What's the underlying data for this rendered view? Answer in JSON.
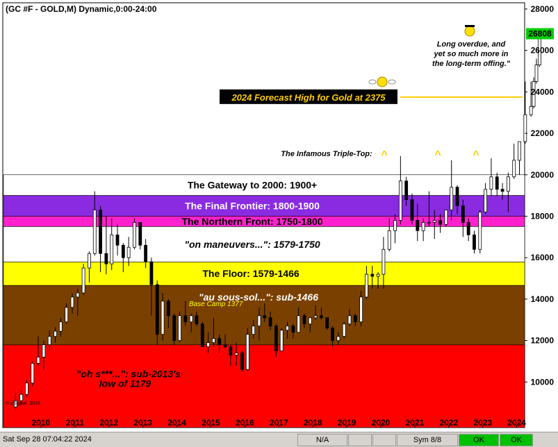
{
  "header": {
    "title": "(GC #F - GOLD,M) Dynamic,0:00-24:00"
  },
  "chart_data": {
    "type": "candlestick",
    "title": "(GC #F - GOLD,M) Dynamic,0:00-24:00",
    "x_axis": {
      "ticks": [
        "2010",
        "2011",
        "2012",
        "2013",
        "2014",
        "2015",
        "2016",
        "2017",
        "2018",
        "2019",
        "2020",
        "2021",
        "2022",
        "2023",
        "2024"
      ]
    },
    "y_axis": {
      "position": "right",
      "range": [
        7800,
        28300
      ],
      "ticks": [
        10000,
        12000,
        14000,
        16000,
        18000,
        20000,
        22000,
        24000,
        26000,
        28000
      ],
      "tick_labels": [
        "10000",
        "12000",
        "14000",
        "16000",
        "18000",
        "20000",
        "22000",
        "24000",
        "26000",
        "28000"
      ]
    },
    "last_price": "26808",
    "last_price_color": "#00cc00",
    "bands": [
      {
        "label": "The Gateway to 2000:  1900+",
        "low": 19000,
        "high": 20000,
        "color": "#ffffff",
        "text_color": "#000000",
        "italic": false
      },
      {
        "label": "The Final Frontier:  1800-1900",
        "low": 18000,
        "high": 19000,
        "color": "#8a2be2",
        "text_color": "#ffffff",
        "italic": false
      },
      {
        "label": "The Northern Front:  1750-1800",
        "low": 17500,
        "high": 18000,
        "color": "#ff22cc",
        "text_color": "#000000",
        "italic": false
      },
      {
        "label": "\"on maneuvers...\":  1579-1750",
        "low": 15790,
        "high": 17500,
        "color": "#ffffff",
        "text_color": "#000000",
        "italic": true
      },
      {
        "label": "The Floor:  1579-1466",
        "low": 14660,
        "high": 15790,
        "color": "#ffff00",
        "text_color": "#000000",
        "italic": false
      },
      {
        "label": "\"au sous-sol...\":  sub-1466",
        "low": 11790,
        "high": 14660,
        "color": "#7a4000",
        "text_color": "#ffffff",
        "italic": true
      },
      {
        "label": "\"oh s***...\":  sub-2013's low of 1179",
        "low": 7800,
        "high": 11790,
        "color": "#ff0000",
        "text_color": "#000000",
        "italic": true
      }
    ],
    "band_notes": {
      "base_camp": "Base Camp 1377",
      "oh_line1": "\"oh s***...\":  sub-2013's",
      "oh_line2": "low of 1179"
    },
    "annotations": {
      "triple_top": "The Infamous Triple-Top:",
      "caret": "^",
      "forecast": "2024 Forecast High for Gold at 2375",
      "forecast_value": 23750,
      "overdue_line1": "Long overdue, and",
      "overdue_line2": "yet so much more in",
      "overdue_line3": "the long-term offing.\"",
      "copyright": "© eSignal, 2016"
    },
    "series_description": "Monthly candles ~2009.2 to 2024.8",
    "candles": [
      {
        "x": 2009.25,
        "o": 8800,
        "h": 9450,
        "l": 8650,
        "c": 9100
      },
      {
        "x": 2009.42,
        "o": 9100,
        "h": 9600,
        "l": 8900,
        "c": 9400
      },
      {
        "x": 2009.58,
        "o": 9400,
        "h": 10100,
        "l": 9300,
        "c": 9950
      },
      {
        "x": 2009.75,
        "o": 9950,
        "h": 11000,
        "l": 9800,
        "c": 10900
      },
      {
        "x": 2009.92,
        "o": 10900,
        "h": 12200,
        "l": 10800,
        "c": 11200
      },
      {
        "x": 2010.08,
        "o": 11200,
        "h": 12000,
        "l": 10600,
        "c": 11800
      },
      {
        "x": 2010.25,
        "o": 11800,
        "h": 12500,
        "l": 11500,
        "c": 12200
      },
      {
        "x": 2010.42,
        "o": 12200,
        "h": 12650,
        "l": 11900,
        "c": 12450
      },
      {
        "x": 2010.58,
        "o": 12450,
        "h": 13100,
        "l": 12200,
        "c": 12900
      },
      {
        "x": 2010.75,
        "o": 12900,
        "h": 13800,
        "l": 12800,
        "c": 13600
      },
      {
        "x": 2010.92,
        "o": 13600,
        "h": 14300,
        "l": 13300,
        "c": 14100
      },
      {
        "x": 2011.08,
        "o": 14100,
        "h": 14500,
        "l": 13200,
        "c": 14300
      },
      {
        "x": 2011.25,
        "o": 14300,
        "h": 15700,
        "l": 14200,
        "c": 15500
      },
      {
        "x": 2011.42,
        "o": 15500,
        "h": 16300,
        "l": 14800,
        "c": 16200
      },
      {
        "x": 2011.58,
        "o": 16200,
        "h": 19200,
        "l": 16100,
        "c": 18300
      },
      {
        "x": 2011.75,
        "o": 18300,
        "h": 18500,
        "l": 15300,
        "c": 16200
      },
      {
        "x": 2011.92,
        "o": 16200,
        "h": 18000,
        "l": 15200,
        "c": 15700
      },
      {
        "x": 2012.08,
        "o": 15700,
        "h": 17900,
        "l": 15400,
        "c": 17100
      },
      {
        "x": 2012.25,
        "o": 17100,
        "h": 17600,
        "l": 16100,
        "c": 16600
      },
      {
        "x": 2012.42,
        "o": 16600,
        "h": 16700,
        "l": 15300,
        "c": 16000
      },
      {
        "x": 2012.58,
        "o": 16000,
        "h": 17000,
        "l": 15600,
        "c": 16500
      },
      {
        "x": 2012.75,
        "o": 16500,
        "h": 17900,
        "l": 16400,
        "c": 17700
      },
      {
        "x": 2012.92,
        "o": 17700,
        "h": 17600,
        "l": 16400,
        "c": 16600
      },
      {
        "x": 2013.08,
        "o": 16600,
        "h": 16900,
        "l": 15500,
        "c": 15800
      },
      {
        "x": 2013.25,
        "o": 15800,
        "h": 16000,
        "l": 13200,
        "c": 14700
      },
      {
        "x": 2013.42,
        "o": 14700,
        "h": 14900,
        "l": 11800,
        "c": 12300
      },
      {
        "x": 2013.58,
        "o": 12300,
        "h": 14300,
        "l": 12000,
        "c": 13900
      },
      {
        "x": 2013.75,
        "o": 13900,
        "h": 14000,
        "l": 12600,
        "c": 13200
      },
      {
        "x": 2013.92,
        "o": 13200,
        "h": 13300,
        "l": 11800,
        "c": 12000
      },
      {
        "x": 2014.08,
        "o": 12000,
        "h": 13400,
        "l": 11900,
        "c": 13200
      },
      {
        "x": 2014.25,
        "o": 13200,
        "h": 13900,
        "l": 12700,
        "c": 12900
      },
      {
        "x": 2014.42,
        "o": 12900,
        "h": 13300,
        "l": 12400,
        "c": 13200
      },
      {
        "x": 2014.58,
        "o": 13200,
        "h": 13400,
        "l": 12700,
        "c": 12800
      },
      {
        "x": 2014.75,
        "o": 12800,
        "h": 12900,
        "l": 11800,
        "c": 11700
      },
      {
        "x": 2014.92,
        "o": 11700,
        "h": 12400,
        "l": 11400,
        "c": 11900
      },
      {
        "x": 2015.08,
        "o": 11900,
        "h": 13100,
        "l": 11700,
        "c": 12100
      },
      {
        "x": 2015.25,
        "o": 12100,
        "h": 12300,
        "l": 11400,
        "c": 11800
      },
      {
        "x": 2015.42,
        "o": 11800,
        "h": 12300,
        "l": 11600,
        "c": 11700
      },
      {
        "x": 2015.58,
        "o": 11700,
        "h": 11800,
        "l": 10800,
        "c": 11300
      },
      {
        "x": 2015.75,
        "o": 11300,
        "h": 11900,
        "l": 10800,
        "c": 11400
      },
      {
        "x": 2015.92,
        "o": 11400,
        "h": 11500,
        "l": 10500,
        "c": 10600
      },
      {
        "x": 2016.08,
        "o": 10600,
        "h": 12600,
        "l": 10500,
        "c": 12300
      },
      {
        "x": 2016.25,
        "o": 12300,
        "h": 13000,
        "l": 12100,
        "c": 12700
      },
      {
        "x": 2016.42,
        "o": 12700,
        "h": 13600,
        "l": 12000,
        "c": 13200
      },
      {
        "x": 2016.58,
        "o": 13200,
        "h": 13800,
        "l": 12900,
        "c": 13100
      },
      {
        "x": 2016.75,
        "o": 13100,
        "h": 13400,
        "l": 12500,
        "c": 12700
      },
      {
        "x": 2016.92,
        "o": 12700,
        "h": 12800,
        "l": 11200,
        "c": 11500
      },
      {
        "x": 2017.08,
        "o": 11500,
        "h": 12600,
        "l": 11500,
        "c": 12500
      },
      {
        "x": 2017.25,
        "o": 12500,
        "h": 12900,
        "l": 12100,
        "c": 12700
      },
      {
        "x": 2017.42,
        "o": 12700,
        "h": 12800,
        "l": 12100,
        "c": 12400
      },
      {
        "x": 2017.58,
        "o": 12400,
        "h": 13600,
        "l": 12400,
        "c": 13200
      },
      {
        "x": 2017.75,
        "o": 13200,
        "h": 13300,
        "l": 12600,
        "c": 12800
      },
      {
        "x": 2017.92,
        "o": 12800,
        "h": 13100,
        "l": 12400,
        "c": 13100
      },
      {
        "x": 2018.08,
        "o": 13100,
        "h": 13700,
        "l": 13000,
        "c": 13200
      },
      {
        "x": 2018.25,
        "o": 13200,
        "h": 13600,
        "l": 13000,
        "c": 13100
      },
      {
        "x": 2018.42,
        "o": 13100,
        "h": 13100,
        "l": 12500,
        "c": 12600
      },
      {
        "x": 2018.58,
        "o": 12600,
        "h": 12700,
        "l": 11700,
        "c": 12000
      },
      {
        "x": 2018.75,
        "o": 12000,
        "h": 12400,
        "l": 11800,
        "c": 12200
      },
      {
        "x": 2018.92,
        "o": 12200,
        "h": 12900,
        "l": 12100,
        "c": 12800
      },
      {
        "x": 2019.08,
        "o": 12800,
        "h": 13500,
        "l": 12700,
        "c": 13200
      },
      {
        "x": 2019.25,
        "o": 13200,
        "h": 13300,
        "l": 12700,
        "c": 12900
      },
      {
        "x": 2019.42,
        "o": 12900,
        "h": 14400,
        "l": 12700,
        "c": 14100
      },
      {
        "x": 2019.58,
        "o": 14100,
        "h": 15600,
        "l": 14000,
        "c": 15200
      },
      {
        "x": 2019.75,
        "o": 15200,
        "h": 15600,
        "l": 14500,
        "c": 15100
      },
      {
        "x": 2019.92,
        "o": 15100,
        "h": 15300,
        "l": 14500,
        "c": 15200
      },
      {
        "x": 2020.08,
        "o": 15200,
        "h": 17000,
        "l": 14500,
        "c": 16400
      },
      {
        "x": 2020.25,
        "o": 16400,
        "h": 17900,
        "l": 16300,
        "c": 17300
      },
      {
        "x": 2020.42,
        "o": 17300,
        "h": 18100,
        "l": 16700,
        "c": 17800
      },
      {
        "x": 2020.58,
        "o": 17800,
        "h": 20900,
        "l": 17600,
        "c": 19700
      },
      {
        "x": 2020.75,
        "o": 19700,
        "h": 19900,
        "l": 18500,
        "c": 18800
      },
      {
        "x": 2020.92,
        "o": 18800,
        "h": 19100,
        "l": 17600,
        "c": 17800
      },
      {
        "x": 2021.08,
        "o": 17800,
        "h": 18600,
        "l": 16800,
        "c": 17300
      },
      {
        "x": 2021.25,
        "o": 17300,
        "h": 17900,
        "l": 16800,
        "c": 17700
      },
      {
        "x": 2021.42,
        "o": 17700,
        "h": 19200,
        "l": 17500,
        "c": 17700
      },
      {
        "x": 2021.58,
        "o": 17700,
        "h": 18300,
        "l": 16900,
        "c": 17800
      },
      {
        "x": 2021.75,
        "o": 17800,
        "h": 18100,
        "l": 17200,
        "c": 17600
      },
      {
        "x": 2021.92,
        "o": 17600,
        "h": 18300,
        "l": 17500,
        "c": 18300
      },
      {
        "x": 2022.08,
        "o": 18300,
        "h": 20700,
        "l": 17800,
        "c": 19400
      },
      {
        "x": 2022.25,
        "o": 19400,
        "h": 19500,
        "l": 18100,
        "c": 18500
      },
      {
        "x": 2022.42,
        "o": 18500,
        "h": 18800,
        "l": 17000,
        "c": 17700
      },
      {
        "x": 2022.58,
        "o": 17700,
        "h": 17900,
        "l": 16800,
        "c": 17100
      },
      {
        "x": 2022.75,
        "o": 17100,
        "h": 17300,
        "l": 16200,
        "c": 16400
      },
      {
        "x": 2022.92,
        "o": 16400,
        "h": 18300,
        "l": 16200,
        "c": 18200
      },
      {
        "x": 2023.08,
        "o": 18200,
        "h": 19600,
        "l": 18100,
        "c": 19300
      },
      {
        "x": 2023.25,
        "o": 19300,
        "h": 20800,
        "l": 19000,
        "c": 19900
      },
      {
        "x": 2023.42,
        "o": 19900,
        "h": 20100,
        "l": 19000,
        "c": 19300
      },
      {
        "x": 2023.58,
        "o": 19300,
        "h": 19600,
        "l": 18800,
        "c": 19200
      },
      {
        "x": 2023.75,
        "o": 19200,
        "h": 20100,
        "l": 18200,
        "c": 19900
      },
      {
        "x": 2023.92,
        "o": 19900,
        "h": 21500,
        "l": 19800,
        "c": 20700
      },
      {
        "x": 2024.08,
        "o": 20700,
        "h": 21600,
        "l": 20000,
        "c": 21600
      },
      {
        "x": 2024.25,
        "o": 21600,
        "h": 24500,
        "l": 21500,
        "c": 22900
      },
      {
        "x": 2024.42,
        "o": 22900,
        "h": 24500,
        "l": 22800,
        "c": 23300
      },
      {
        "x": 2024.5,
        "o": 23300,
        "h": 24700,
        "l": 23200,
        "c": 24500
      },
      {
        "x": 2024.58,
        "o": 24500,
        "h": 25600,
        "l": 24400,
        "c": 25300
      },
      {
        "x": 2024.67,
        "o": 25300,
        "h": 26900,
        "l": 25200,
        "c": 26808
      }
    ]
  },
  "status_bar": {
    "timestamp": "Sat Sep 28 07:04:22 2024",
    "na": "N/A",
    "sym": "Sym 8/8",
    "ok1": "OK",
    "ok2": "OK"
  }
}
